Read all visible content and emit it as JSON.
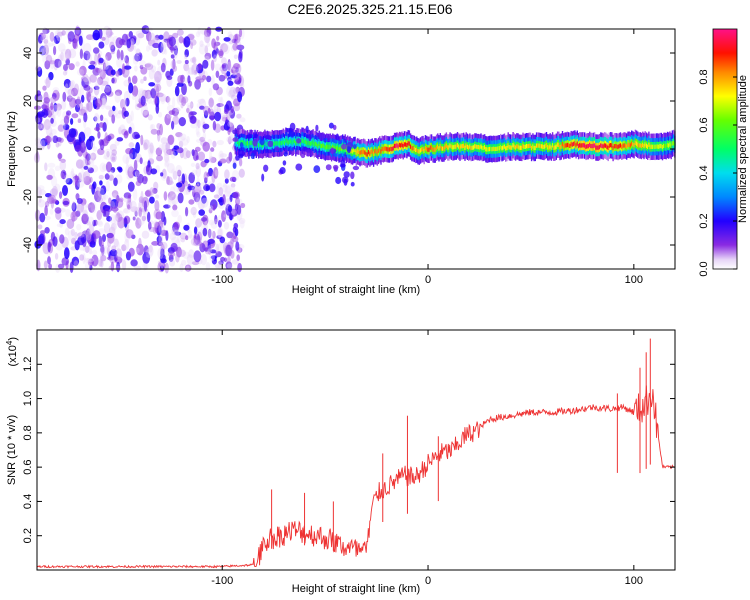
{
  "title": "C2E6.2025.325.21.15.E06",
  "chart_data": [
    {
      "type": "heatmap",
      "name": "spectrogram",
      "xlabel": "Height of straight line (km)",
      "ylabel": "Frequency (Hz)",
      "xlim": [
        -190,
        120
      ],
      "ylim": [
        -50,
        50
      ],
      "xticks": [
        -100,
        0,
        100
      ],
      "yticks": [
        -40,
        -20,
        0,
        20,
        40
      ],
      "noise_region": {
        "x_from": -190,
        "x_to": -90,
        "level": 0.18
      },
      "signal_ridge": {
        "x": [
          -94,
          -88,
          -80,
          -70,
          -60,
          -50,
          -40,
          -35,
          -30,
          -25,
          -20,
          -15,
          -10,
          -5,
          0,
          10,
          20,
          30,
          40,
          50,
          60,
          70,
          80,
          90,
          100,
          110,
          120
        ],
        "freq": [
          3,
          2,
          2,
          3,
          3,
          1,
          0,
          -1,
          -2,
          -1,
          0,
          1,
          2,
          -1,
          0,
          1,
          1,
          0,
          1,
          1,
          1,
          2,
          1,
          1,
          2,
          1,
          2
        ],
        "amplitude": [
          0.45,
          0.5,
          0.45,
          0.5,
          0.5,
          0.55,
          0.6,
          0.75,
          0.85,
          0.75,
          0.85,
          0.9,
          0.85,
          0.7,
          0.8,
          0.7,
          0.7,
          0.65,
          0.7,
          0.7,
          0.7,
          0.85,
          0.95,
          0.85,
          0.75,
          0.65,
          0.6
        ]
      },
      "colorbar": {
        "label": "Normalized spectral amplitude",
        "range": [
          0,
          1
        ],
        "ticks": [
          "0.0",
          "0.2",
          "0.4",
          "0.6",
          "0.8"
        ],
        "tick_values": [
          0,
          0.2,
          0.4,
          0.6,
          0.8
        ]
      }
    },
    {
      "type": "line",
      "name": "snr",
      "xlabel": "Height of straight line (km)",
      "ylabel": "SNR (10 * v/v)",
      "scale_label": "(x10",
      "scale_exponent": "4",
      "scale_close": ")",
      "xlim": [
        -190,
        120
      ],
      "ylim": [
        0,
        1.4
      ],
      "xticks": [
        -100,
        0,
        100
      ],
      "yticks": [
        "0.2",
        "0.4",
        "0.6",
        "0.8",
        "1.0",
        "1.2"
      ],
      "ytick_values": [
        0.2,
        0.4,
        0.6,
        0.8,
        1.0,
        1.2
      ],
      "color": "#ee3333",
      "series": {
        "x": [
          -190,
          -100,
          -85,
          -82,
          -78,
          -72,
          -66,
          -60,
          -54,
          -48,
          -42,
          -36,
          -30,
          -27,
          -24,
          -18,
          -12,
          -6,
          0,
          6,
          12,
          18,
          24,
          30,
          40,
          50,
          60,
          70,
          80,
          90,
          95,
          100,
          104,
          107,
          109,
          111,
          114,
          120
        ],
        "y": [
          0.02,
          0.02,
          0.03,
          0.1,
          0.2,
          0.22,
          0.25,
          0.24,
          0.22,
          0.2,
          0.16,
          0.14,
          0.12,
          0.38,
          0.45,
          0.5,
          0.55,
          0.54,
          0.62,
          0.68,
          0.7,
          0.78,
          0.82,
          0.88,
          0.9,
          0.92,
          0.92,
          0.93,
          0.95,
          0.94,
          0.95,
          0.92,
          0.95,
          1.0,
          1.05,
          0.85,
          0.6,
          0.6
        ]
      },
      "spikes": [
        {
          "x": -76,
          "y": 0.47
        },
        {
          "x": -60,
          "y": 0.45
        },
        {
          "x": -46,
          "y": 0.4
        },
        {
          "x": -22,
          "y": 0.68
        },
        {
          "x": -10,
          "y": 0.9
        },
        {
          "x": 5,
          "y": 0.78
        },
        {
          "x": 92,
          "y": 1.03
        },
        {
          "x": 103,
          "y": 1.18
        },
        {
          "x": 106,
          "y": 1.27
        },
        {
          "x": 108,
          "y": 1.35
        }
      ]
    }
  ]
}
